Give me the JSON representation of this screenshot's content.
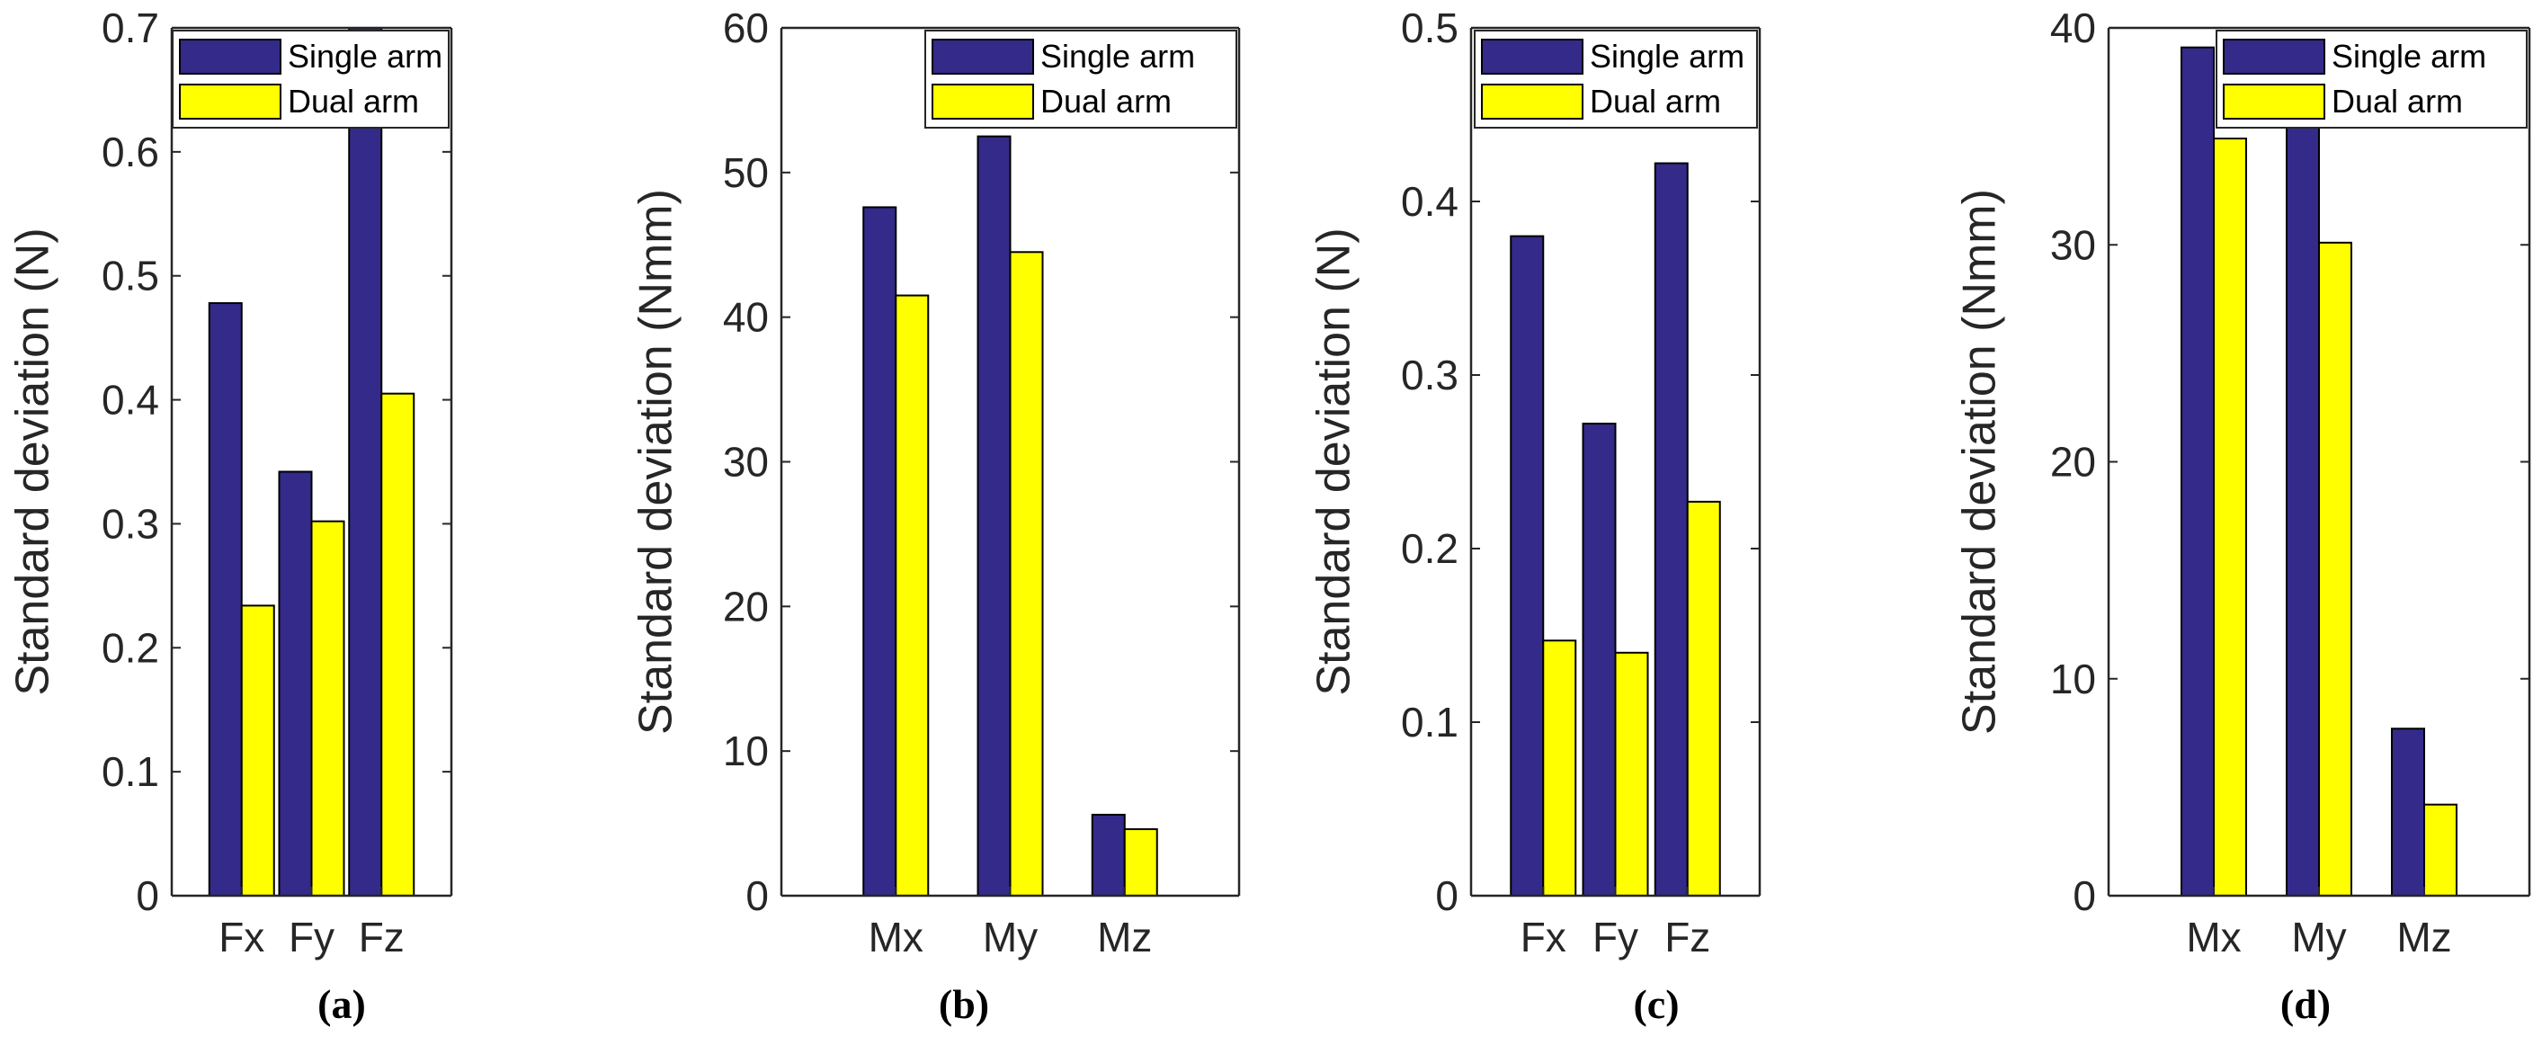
{
  "chart_data": [
    {
      "type": "bar",
      "panel_label": "(a)",
      "categories": [
        "Fx",
        "Fy",
        "Fz"
      ],
      "series": [
        {
          "name": "Single arm",
          "values": [
            0.478,
            0.342,
            0.7
          ]
        },
        {
          "name": "Dual arm",
          "values": [
            0.234,
            0.302,
            0.405
          ]
        }
      ],
      "xlabel": "",
      "ylabel": "Standard deviation (N)",
      "ylim": [
        0,
        0.7
      ],
      "yticks": [
        "0",
        "0.1",
        "0.2",
        "0.3",
        "0.4",
        "0.5",
        "0.6",
        "0.7"
      ],
      "legend_position": "top-left"
    },
    {
      "type": "bar",
      "panel_label": "(b)",
      "categories": [
        "Mx",
        "My",
        "Mz"
      ],
      "series": [
        {
          "name": "Single arm",
          "values": [
            47.6,
            52.5,
            5.6
          ]
        },
        {
          "name": "Dual arm",
          "values": [
            41.5,
            44.5,
            4.6
          ]
        }
      ],
      "xlabel": "",
      "ylabel": "Standard deviation (Nmm)",
      "ylim": [
        0,
        60
      ],
      "yticks": [
        "0",
        "10",
        "20",
        "30",
        "40",
        "50",
        "60"
      ],
      "legend_position": "top-right"
    },
    {
      "type": "bar",
      "panel_label": "(c)",
      "categories": [
        "Fx",
        "Fy",
        "Fz"
      ],
      "series": [
        {
          "name": "Single arm",
          "values": [
            0.38,
            0.272,
            0.422
          ]
        },
        {
          "name": "Dual arm",
          "values": [
            0.147,
            0.14,
            0.227
          ]
        }
      ],
      "xlabel": "",
      "ylabel": "Standard deviation (N)",
      "ylim": [
        0,
        0.5
      ],
      "yticks": [
        "0",
        "0.1",
        "0.2",
        "0.3",
        "0.4",
        "0.5"
      ],
      "legend_position": "top-left"
    },
    {
      "type": "bar",
      "panel_label": "(d)",
      "categories": [
        "Mx",
        "My",
        "Mz"
      ],
      "series": [
        {
          "name": "Single arm",
          "values": [
            39.1,
            35.6,
            7.7
          ]
        },
        {
          "name": "Dual arm",
          "values": [
            34.9,
            30.1,
            4.2
          ]
        }
      ],
      "xlabel": "",
      "ylabel": "Standard deviation (Nmm)",
      "ylim": [
        0,
        40
      ],
      "yticks": [
        "0",
        "10",
        "20",
        "30",
        "40"
      ],
      "legend_position": "top-right"
    }
  ],
  "colors": {
    "single_arm": "#342a8a",
    "dual_arm": "#ffff00",
    "axis": "#262626",
    "bar_edge": "#000000"
  }
}
